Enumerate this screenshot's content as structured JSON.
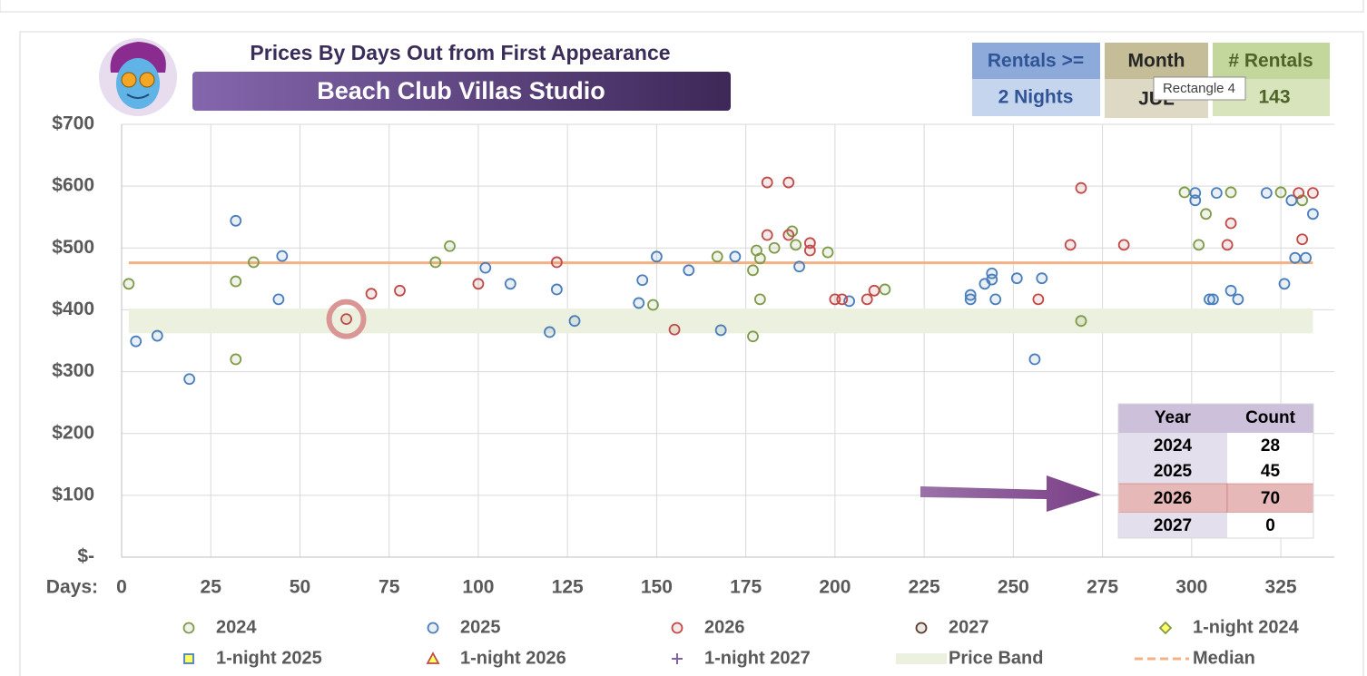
{
  "filters": [
    {
      "label": "Rentals >=",
      "value": "2 Nights"
    },
    {
      "label": "Month",
      "value": "JUL"
    },
    {
      "label": "# Rentals",
      "value": 143
    }
  ],
  "tooltip": "Rectangle 4",
  "chart_data": {
    "type": "scatter",
    "title": "Prices By Days Out from First Appearance",
    "subtitle": "Beach Club Villas Studio",
    "x_label": "Days:",
    "xlim": [
      0,
      340
    ],
    "xticks": [
      0,
      25,
      50,
      75,
      100,
      125,
      150,
      175,
      200,
      225,
      250,
      275,
      300,
      325
    ],
    "ylim": [
      0,
      700
    ],
    "yticks": [
      {
        "value": 0,
        "label": "$-"
      },
      {
        "value": 100,
        "label": "$100"
      },
      {
        "value": 200,
        "label": "$200"
      },
      {
        "value": 300,
        "label": "$300"
      },
      {
        "value": 400,
        "label": "$400"
      },
      {
        "value": 500,
        "label": "$500"
      },
      {
        "value": 600,
        "label": "$600"
      },
      {
        "value": 700,
        "label": "$700"
      }
    ],
    "grid": true,
    "series": [
      {
        "name": "2024",
        "color": "#7f9a48",
        "marker": "circle",
        "x": [
          2,
          32,
          32,
          37,
          88,
          92,
          149,
          167,
          177,
          178,
          179,
          177,
          179,
          183,
          188,
          189,
          198,
          214,
          269,
          298,
          304,
          302,
          311,
          325,
          331
        ],
        "values": [
          442,
          446,
          320,
          477,
          477,
          503,
          408,
          486,
          464,
          496,
          483,
          357,
          417,
          500,
          527,
          505,
          493,
          433,
          382,
          590,
          555,
          505,
          590,
          590,
          577
        ]
      },
      {
        "name": "2025",
        "color": "#4a7ebb",
        "marker": "circle",
        "x": [
          4,
          10,
          19,
          32,
          44,
          45,
          102,
          109,
          120,
          122,
          127,
          145,
          146,
          150,
          159,
          168,
          172,
          190,
          204,
          238,
          238,
          242,
          244,
          244,
          245,
          251,
          256,
          258,
          301,
          301,
          305,
          306,
          307,
          311,
          313,
          321,
          326,
          328,
          329,
          332,
          334
        ],
        "values": [
          349,
          358,
          288,
          544,
          417,
          487,
          468,
          442,
          364,
          433,
          382,
          411,
          448,
          486,
          464,
          367,
          486,
          470,
          414,
          424,
          417,
          442,
          449,
          459,
          417,
          451,
          320,
          451,
          577,
          589,
          417,
          417,
          589,
          431,
          417,
          589,
          442,
          577,
          484,
          484,
          555
        ]
      },
      {
        "name": "2026",
        "color": "#be4b48",
        "marker": "circle",
        "x": [
          63,
          70,
          78,
          100,
          122,
          155,
          181,
          181,
          187,
          187,
          193,
          193,
          200,
          202,
          209,
          211,
          257,
          266,
          269,
          281,
          310,
          311,
          330,
          331,
          334
        ],
        "values": [
          385,
          426,
          431,
          442,
          477,
          368,
          606,
          521,
          606,
          521,
          508,
          496,
          417,
          417,
          417,
          431,
          417,
          505,
          597,
          505,
          505,
          540,
          589,
          514,
          589
        ]
      },
      {
        "name": "2027",
        "color": "#5a3a2a",
        "marker": "circle",
        "x": [],
        "values": []
      },
      {
        "name": "1-night 2024",
        "color": "#7f9a48",
        "fill": "#ffff66",
        "marker": "diamond",
        "x": [],
        "values": []
      },
      {
        "name": "1-night 2025",
        "color": "#4a7ebb",
        "fill": "#ffff66",
        "marker": "square",
        "x": [],
        "values": []
      },
      {
        "name": "1-night 2026",
        "color": "#be4b48",
        "fill": "#ffff66",
        "marker": "triangle",
        "x": [],
        "values": []
      },
      {
        "name": "1-night 2027",
        "color": "#8064a2",
        "marker": "plus",
        "x": [],
        "values": []
      }
    ],
    "price_band": {
      "name": "Price Band",
      "low": 362,
      "high": 402,
      "color": "#ebf1de"
    },
    "median": {
      "name": "Median",
      "value": 476,
      "color": "#f4b183"
    },
    "highlight": {
      "series": 2,
      "index": 0
    }
  },
  "summary_table": {
    "header": [
      "Year",
      "Count"
    ],
    "rows": [
      [
        2024,
        28
      ],
      [
        2025,
        45
      ],
      [
        2026,
        70
      ],
      [
        2027,
        0
      ]
    ],
    "highlight_row": 2
  }
}
